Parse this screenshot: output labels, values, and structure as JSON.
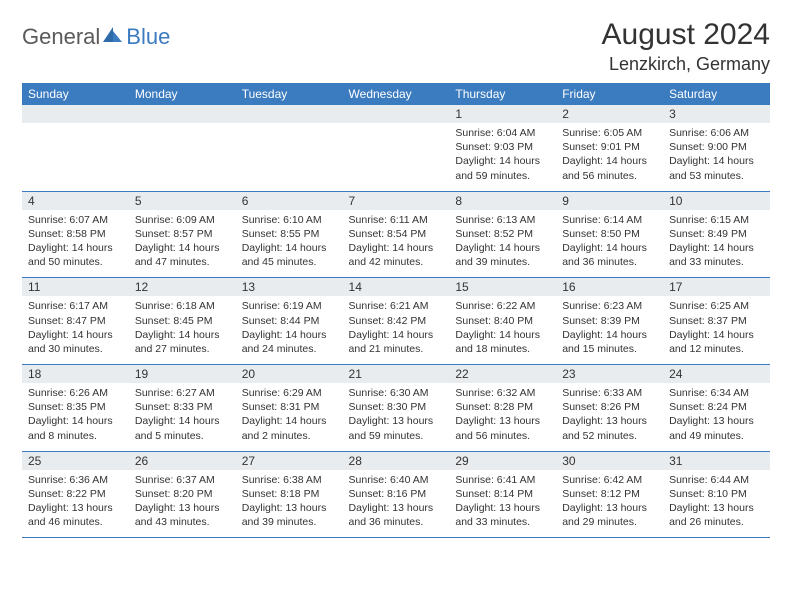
{
  "brand": {
    "left": "General",
    "right": "Blue"
  },
  "title": "August 2024",
  "location": "Lenzkirch, Germany",
  "colors": {
    "header_bg": "#3b7bbf",
    "header_fg": "#ffffff",
    "daynum_bg": "#e9ecef",
    "text": "#333333",
    "rule": "#3b7bbf",
    "page_bg": "#ffffff"
  },
  "dayNames": [
    "Sunday",
    "Monday",
    "Tuesday",
    "Wednesday",
    "Thursday",
    "Friday",
    "Saturday"
  ],
  "weeks": [
    [
      null,
      null,
      null,
      null,
      {
        "n": "1",
        "sr": "6:04 AM",
        "ss": "9:03 PM",
        "dl": "14 hours and 59 minutes."
      },
      {
        "n": "2",
        "sr": "6:05 AM",
        "ss": "9:01 PM",
        "dl": "14 hours and 56 minutes."
      },
      {
        "n": "3",
        "sr": "6:06 AM",
        "ss": "9:00 PM",
        "dl": "14 hours and 53 minutes."
      }
    ],
    [
      {
        "n": "4",
        "sr": "6:07 AM",
        "ss": "8:58 PM",
        "dl": "14 hours and 50 minutes."
      },
      {
        "n": "5",
        "sr": "6:09 AM",
        "ss": "8:57 PM",
        "dl": "14 hours and 47 minutes."
      },
      {
        "n": "6",
        "sr": "6:10 AM",
        "ss": "8:55 PM",
        "dl": "14 hours and 45 minutes."
      },
      {
        "n": "7",
        "sr": "6:11 AM",
        "ss": "8:54 PM",
        "dl": "14 hours and 42 minutes."
      },
      {
        "n": "8",
        "sr": "6:13 AM",
        "ss": "8:52 PM",
        "dl": "14 hours and 39 minutes."
      },
      {
        "n": "9",
        "sr": "6:14 AM",
        "ss": "8:50 PM",
        "dl": "14 hours and 36 minutes."
      },
      {
        "n": "10",
        "sr": "6:15 AM",
        "ss": "8:49 PM",
        "dl": "14 hours and 33 minutes."
      }
    ],
    [
      {
        "n": "11",
        "sr": "6:17 AM",
        "ss": "8:47 PM",
        "dl": "14 hours and 30 minutes."
      },
      {
        "n": "12",
        "sr": "6:18 AM",
        "ss": "8:45 PM",
        "dl": "14 hours and 27 minutes."
      },
      {
        "n": "13",
        "sr": "6:19 AM",
        "ss": "8:44 PM",
        "dl": "14 hours and 24 minutes."
      },
      {
        "n": "14",
        "sr": "6:21 AM",
        "ss": "8:42 PM",
        "dl": "14 hours and 21 minutes."
      },
      {
        "n": "15",
        "sr": "6:22 AM",
        "ss": "8:40 PM",
        "dl": "14 hours and 18 minutes."
      },
      {
        "n": "16",
        "sr": "6:23 AM",
        "ss": "8:39 PM",
        "dl": "14 hours and 15 minutes."
      },
      {
        "n": "17",
        "sr": "6:25 AM",
        "ss": "8:37 PM",
        "dl": "14 hours and 12 minutes."
      }
    ],
    [
      {
        "n": "18",
        "sr": "6:26 AM",
        "ss": "8:35 PM",
        "dl": "14 hours and 8 minutes."
      },
      {
        "n": "19",
        "sr": "6:27 AM",
        "ss": "8:33 PM",
        "dl": "14 hours and 5 minutes."
      },
      {
        "n": "20",
        "sr": "6:29 AM",
        "ss": "8:31 PM",
        "dl": "14 hours and 2 minutes."
      },
      {
        "n": "21",
        "sr": "6:30 AM",
        "ss": "8:30 PM",
        "dl": "13 hours and 59 minutes."
      },
      {
        "n": "22",
        "sr": "6:32 AM",
        "ss": "8:28 PM",
        "dl": "13 hours and 56 minutes."
      },
      {
        "n": "23",
        "sr": "6:33 AM",
        "ss": "8:26 PM",
        "dl": "13 hours and 52 minutes."
      },
      {
        "n": "24",
        "sr": "6:34 AM",
        "ss": "8:24 PM",
        "dl": "13 hours and 49 minutes."
      }
    ],
    [
      {
        "n": "25",
        "sr": "6:36 AM",
        "ss": "8:22 PM",
        "dl": "13 hours and 46 minutes."
      },
      {
        "n": "26",
        "sr": "6:37 AM",
        "ss": "8:20 PM",
        "dl": "13 hours and 43 minutes."
      },
      {
        "n": "27",
        "sr": "6:38 AM",
        "ss": "8:18 PM",
        "dl": "13 hours and 39 minutes."
      },
      {
        "n": "28",
        "sr": "6:40 AM",
        "ss": "8:16 PM",
        "dl": "13 hours and 36 minutes."
      },
      {
        "n": "29",
        "sr": "6:41 AM",
        "ss": "8:14 PM",
        "dl": "13 hours and 33 minutes."
      },
      {
        "n": "30",
        "sr": "6:42 AM",
        "ss": "8:12 PM",
        "dl": "13 hours and 29 minutes."
      },
      {
        "n": "31",
        "sr": "6:44 AM",
        "ss": "8:10 PM",
        "dl": "13 hours and 26 minutes."
      }
    ]
  ],
  "labels": {
    "sunrise": "Sunrise: ",
    "sunset": "Sunset: ",
    "daylight": "Daylight: "
  }
}
